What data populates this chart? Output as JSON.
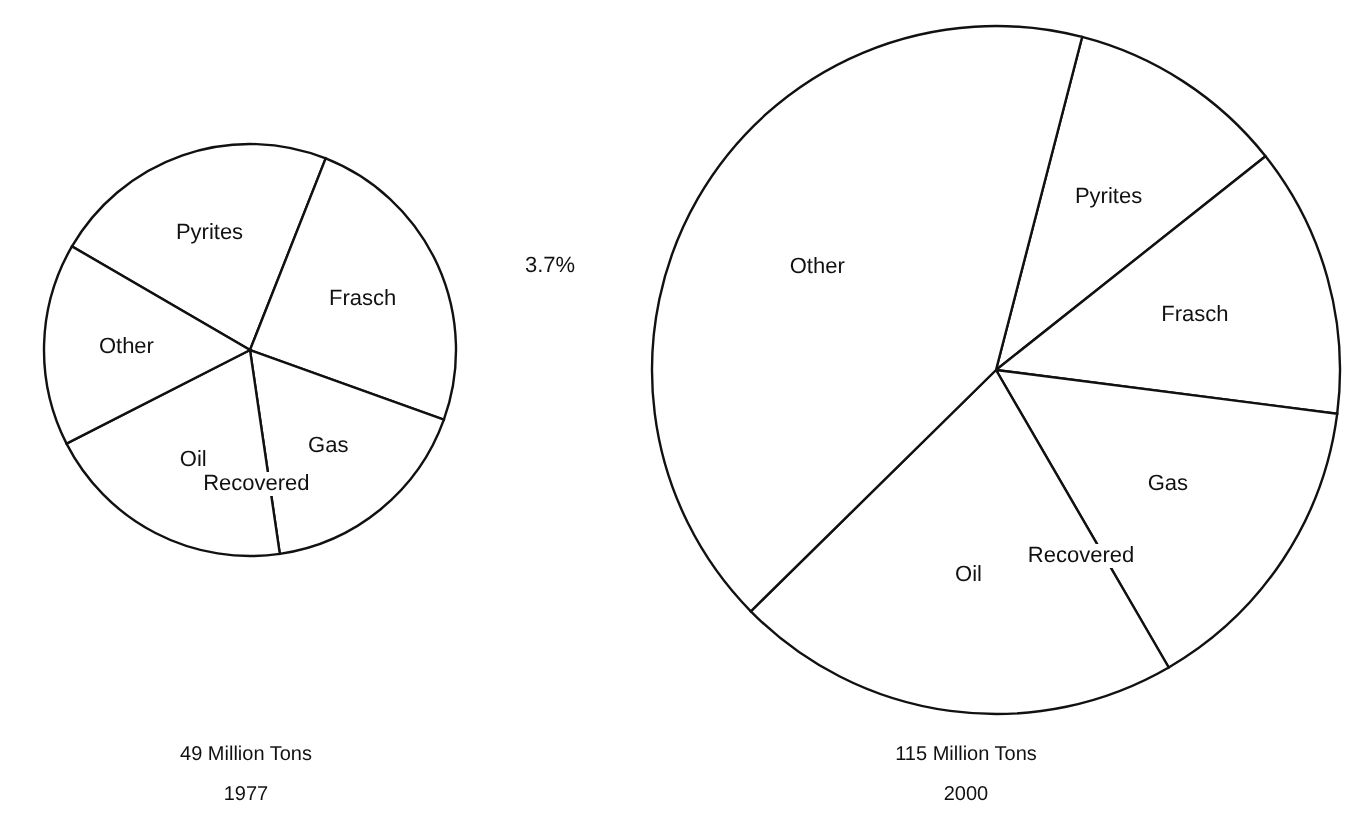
{
  "chart_data": [
    {
      "type": "pie",
      "title": "49 Million Tons",
      "subtitle": "1977",
      "categories": [
        "Pyrites",
        "Frasch",
        "Gas",
        "Oil",
        "Other"
      ],
      "values": [
        22.6,
        24.5,
        17.2,
        19.8,
        15.9
      ],
      "colors": [
        "#ffffff",
        "#ffffff",
        "#ffffff",
        "#ffffff",
        "#ffffff"
      ],
      "annotations": [
        "Recovered",
        "3.7%"
      ]
    },
    {
      "type": "pie",
      "title": "115 Million Tons",
      "subtitle": "2000",
      "categories": [
        "Pyrites",
        "Frasch",
        "Gas",
        "Oil",
        "Other"
      ],
      "values": [
        10.3,
        12.7,
        14.6,
        21.0,
        41.4
      ],
      "colors": [
        "#ffffff",
        "#ffffff",
        "#ffffff",
        "#ffffff",
        "#ffffff"
      ],
      "annotations": [
        "Recovered"
      ]
    }
  ]
}
